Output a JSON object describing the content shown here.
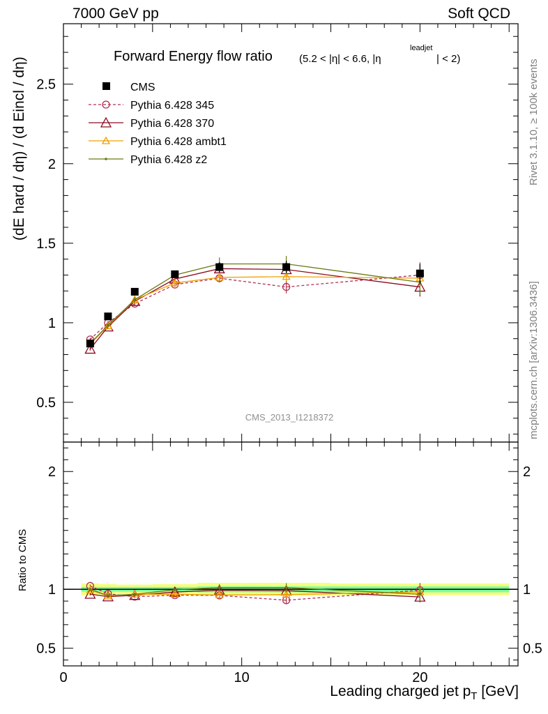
{
  "header": {
    "left": "7000 GeV pp",
    "right": "Soft QCD"
  },
  "side_text": {
    "top": "Rivet 3.1.10, ≥ 100k events",
    "bottom": "mcplots.cern.ch [arXiv:1306.3436]"
  },
  "chart_data": {
    "type": "line",
    "title": "Forward Energy flow ratio",
    "title_suffix": "(5.2 < |η| < 6.6, |η",
    "title_sup": "leadjet",
    "title_end": "| < 2)",
    "watermark": "CMS_2013_I1218372",
    "ylabel": "(dE hard / dη) / (d Eincl / dη)",
    "ylabel_ratio": "Ratio to CMS",
    "xlabel": "Leading charged jet p",
    "xlabel_sub": "T",
    "xlabel_unit": " [GeV]",
    "xlim": [
      0,
      25.5
    ],
    "ylim": [
      0.25,
      2.88
    ],
    "ratio_ylim": [
      0.35,
      2.25
    ],
    "x_ticks": [
      "0",
      "10",
      "20"
    ],
    "y_ticks": [
      "0.5",
      "1",
      "1.5",
      "2",
      "2.5"
    ],
    "ratio_ticks": [
      "0.5",
      "1",
      "2"
    ],
    "legend": {
      "cms": "CMS",
      "p345": "Pythia 6.428 345",
      "p370": "Pythia 6.428 370",
      "ambt1": "Pythia 6.428 ambt1",
      "z2": "Pythia 6.428 z2"
    },
    "x": [
      1.5,
      2.5,
      4.0,
      6.25,
      8.75,
      12.5,
      20.0
    ],
    "cms": {
      "values": [
        0.87,
        1.04,
        1.195,
        1.305,
        1.35,
        1.35,
        1.31
      ],
      "errors": [
        0.015,
        0.015,
        0.015,
        0.02,
        0.03,
        0.04,
        0.06
      ],
      "color": "#000000"
    },
    "series": [
      {
        "name": "Pythia 6.428 345",
        "key": "p345",
        "color": "#b03050",
        "marker": "circle",
        "dashed": true,
        "values": [
          0.895,
          1.0,
          1.12,
          1.24,
          1.28,
          1.225,
          1.3
        ],
        "errors": [
          0.01,
          0.01,
          0.015,
          0.015,
          0.025,
          0.04,
          0.08
        ]
      },
      {
        "name": "Pythia 6.428 370",
        "key": "p370",
        "color": "#8a0a20",
        "marker": "triangle",
        "dashed": false,
        "values": [
          0.835,
          0.975,
          1.135,
          1.275,
          1.34,
          1.335,
          1.225
        ],
        "errors": [
          0.01,
          0.01,
          0.015,
          0.015,
          0.025,
          0.04,
          0.06
        ]
      },
      {
        "name": "Pythia 6.428 ambt1",
        "key": "ambt1",
        "color": "#f0a000",
        "marker": "triangle-small",
        "dashed": false,
        "values": [
          0.865,
          0.98,
          1.145,
          1.25,
          1.285,
          1.29,
          1.28
        ],
        "errors": [
          0.01,
          0.01,
          0.015,
          0.015,
          0.02,
          0.03,
          0.05
        ]
      },
      {
        "name": "Pythia 6.428 z2",
        "key": "z2",
        "color": "#6b7a10",
        "marker": "dot",
        "dashed": false,
        "values": [
          0.87,
          0.985,
          1.145,
          1.3,
          1.37,
          1.37,
          1.255
        ],
        "errors": [
          0.01,
          0.01,
          0.015,
          0.015,
          0.04,
          0.05,
          0.08
        ]
      }
    ],
    "bands": {
      "edges": [
        1.0,
        2.0,
        3.0,
        5.0,
        7.5,
        10.0,
        15.0,
        25.0
      ],
      "inner": [
        0.02,
        0.02,
        0.02,
        0.02,
        0.025,
        0.025,
        0.025
      ],
      "outer": [
        0.05,
        0.045,
        0.04,
        0.045,
        0.055,
        0.055,
        0.05
      ],
      "inner_color": "#7fff9f",
      "outer_color": "#f5ff80"
    }
  }
}
